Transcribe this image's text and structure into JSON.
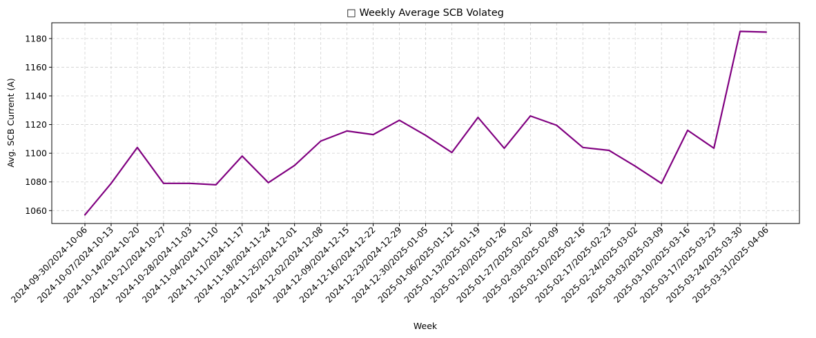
{
  "chart_data": {
    "type": "line",
    "title": "Weekly Average SCB Volateg",
    "title_icon": "emoji-glyph",
    "xlabel": "Week",
    "ylabel": "Avg. SCB Current (A)",
    "ylim": [
      1051,
      1191
    ],
    "yticks": [
      1060,
      1080,
      1100,
      1120,
      1140,
      1160,
      1180
    ],
    "grid": true,
    "line_color": "#800080",
    "categories": [
      "2024-09-30/2024-10-06",
      "2024-10-07/2024-10-13",
      "2024-10-14/2024-10-20",
      "2024-10-21/2024-10-27",
      "2024-10-28/2024-11-03",
      "2024-11-04/2024-11-10",
      "2024-11-11/2024-11-17",
      "2024-11-18/2024-11-24",
      "2024-11-25/2024-12-01",
      "2024-12-02/2024-12-08",
      "2024-12-09/2024-12-15",
      "2024-12-16/2024-12-22",
      "2024-12-23/2024-12-29",
      "2024-12-30/2025-01-05",
      "2025-01-06/2025-01-12",
      "2025-01-13/2025-01-19",
      "2025-01-20/2025-01-26",
      "2025-01-27/2025-02-02",
      "2025-02-03/2025-02-09",
      "2025-02-10/2025-02-16",
      "2025-02-17/2025-02-23",
      "2025-02-24/2025-03-02",
      "2025-03-03/2025-03-09",
      "2025-03-10/2025-03-16",
      "2025-03-17/2025-03-23",
      "2025-03-24/2025-03-30",
      "2025-03-31/2025-04-06"
    ],
    "values": [
      1057,
      1079,
      1104,
      1079,
      1079,
      1078,
      1098,
      1079.5,
      1091.5,
      1108.5,
      1115.5,
      1113,
      1123,
      1112.5,
      1100.5,
      1125,
      1103.5,
      1126,
      1119.5,
      1104,
      1102,
      1091,
      1079,
      1116,
      1103.5,
      1185,
      1184.5
    ]
  }
}
